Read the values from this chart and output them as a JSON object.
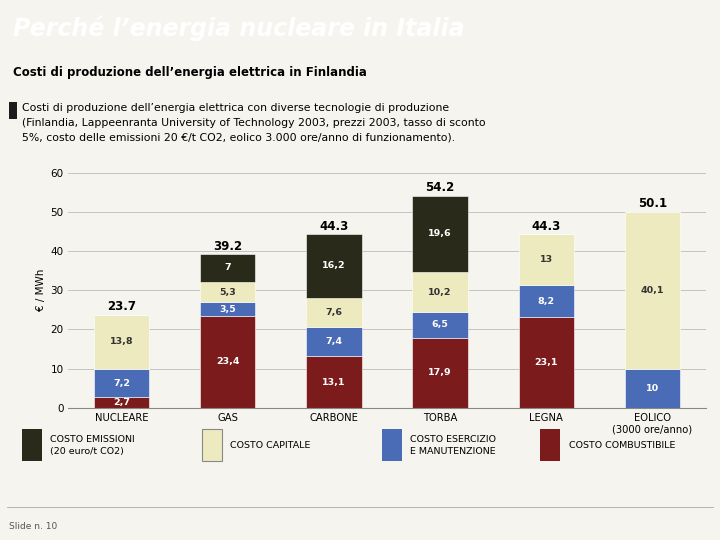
{
  "title": "Perché l’energia nucleare in Italia",
  "subtitle": "Costi di produzione dell’energia elettrica in Finlandia",
  "description_bullet": "Costi di produzione dell’energia elettrica con diverse tecnologie di produzione\n(Finlandia, Lappeenranta University of Technology 2003, prezzi 2003, tasso di sconto\n5%, costo delle emissioni 20 €/t CO2, eolico 3.000 ore/anno di funzionamento).",
  "categories": [
    "NUCLEARE",
    "GAS",
    "CARBONE",
    "TORBA",
    "LEGNA",
    "EOLICO\n(3000 ore/anno)"
  ],
  "totals": [
    "23.7",
    "39.2",
    "44.3",
    "54.2",
    "44.3",
    "50.1"
  ],
  "segments": {
    "costo_combustibile": [
      2.7,
      23.4,
      13.1,
      17.9,
      23.1,
      0.0
    ],
    "costo_esercizio": [
      7.2,
      3.5,
      7.4,
      6.5,
      8.2,
      10.0
    ],
    "costo_capitale": [
      13.8,
      5.3,
      7.6,
      10.2,
      13.0,
      40.1
    ],
    "costo_emissioni": [
      0.0,
      7.0,
      16.2,
      19.6,
      0.0,
      0.0
    ]
  },
  "seg_labels": {
    "costo_combustibile": [
      "2,7",
      "23,4",
      "13,1",
      "17,9",
      "23,1",
      ""
    ],
    "costo_esercizio": [
      "7,2",
      "3,5",
      "7,4",
      "6,5",
      "8,2",
      "10"
    ],
    "costo_capitale": [
      "13,8",
      "5,3",
      "7,6",
      "10,2",
      "13",
      "40,1"
    ],
    "costo_emissioni": [
      "",
      "7",
      "16,2",
      "19,6",
      "",
      ""
    ]
  },
  "colors": {
    "costo_combustibile": "#7B1B1B",
    "costo_esercizio": "#4A6BB5",
    "costo_capitale": "#EEEAC0",
    "costo_emissioni": "#2A2A1A"
  },
  "label_fg": {
    "costo_combustibile": "white",
    "costo_esercizio": "white",
    "costo_capitale": "#333333",
    "costo_emissioni": "white"
  },
  "legend_labels": [
    [
      "costo_emissioni",
      "COSTO EMISSIONI\n(20 euro/t CO2)"
    ],
    [
      "costo_capitale",
      "COSTO CAPITALE"
    ],
    [
      "costo_esercizio",
      "COSTO ESERCIZIO\nE MANUTENZIONE"
    ],
    [
      "costo_combustibile",
      "COSTO COMBUSTIBILE"
    ]
  ],
  "ylabel": "€ / MWh",
  "ylim": [
    0,
    60
  ],
  "yticks": [
    0,
    10,
    20,
    30,
    40,
    50,
    60
  ],
  "title_bg": "#1C3F6E",
  "subtitle_bg": "#C8C8C8",
  "body_bg": "#F5F4EE",
  "chart_bg": "#F5F4EE",
  "grid_color": "#BBBBBB",
  "slide_label": "Slide n. 10"
}
